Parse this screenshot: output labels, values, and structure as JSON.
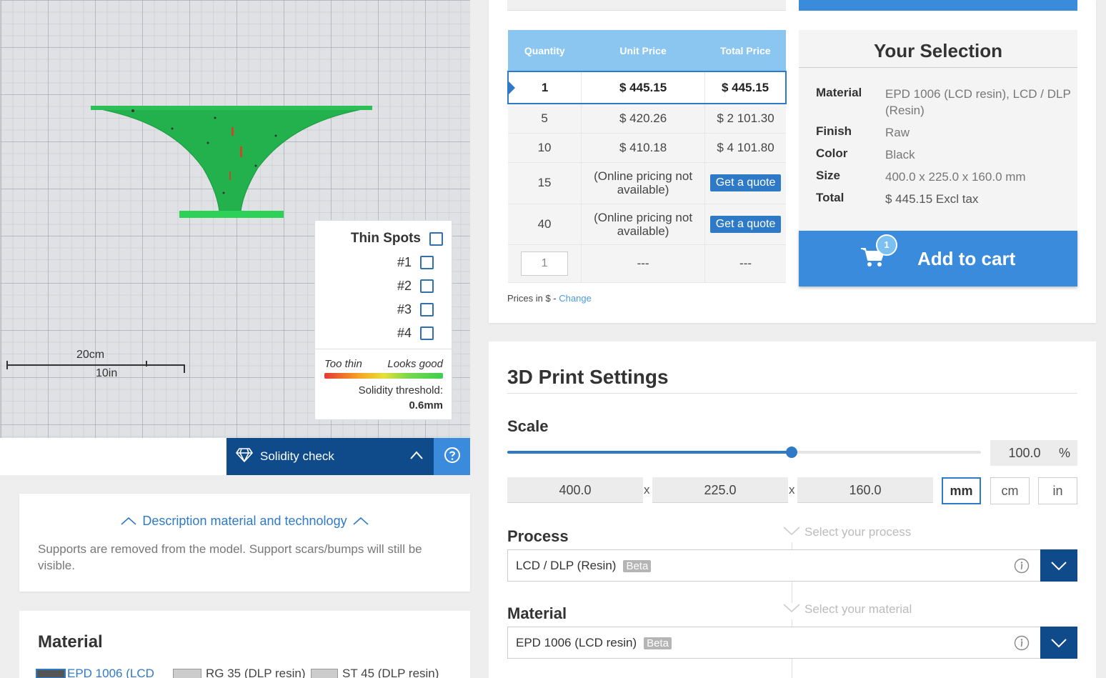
{
  "viewer": {
    "scale_cm": "20cm",
    "scale_in": "10in",
    "thin_spots": {
      "title": "Thin Spots",
      "items": [
        "#1",
        "#2",
        "#3",
        "#4"
      ],
      "legend_low": "Too thin",
      "legend_high": "Looks good",
      "threshold_label": "Solidity threshold:",
      "threshold_value": "0.6mm"
    },
    "solidity_button": "Solidity check",
    "model_color": "#22b14c"
  },
  "description": {
    "header": "Description material and technology",
    "text": "Supports are removed from the model. Support scars/bumps will still be visible."
  },
  "material_card": {
    "title": "Material",
    "options": [
      "EPD 1006 (LCD",
      "RG 35 (DLP resin)",
      "ST 45 (DLP resin)"
    ]
  },
  "pricing": {
    "headers": [
      "Quantity",
      "Unit Price",
      "Total Price"
    ],
    "rows": [
      {
        "qty": "1",
        "unit": "$ 445.15",
        "total": "$ 445.15"
      },
      {
        "qty": "5",
        "unit": "$ 420.26",
        "total": "$ 2 101.30"
      },
      {
        "qty": "10",
        "unit": "$ 410.18",
        "total": "$ 4 101.80"
      },
      {
        "qty": "15",
        "unit": "(Online pricing not available)",
        "total": "Get a quote"
      },
      {
        "qty": "40",
        "unit": "(Online pricing not available)",
        "total": "Get a quote"
      }
    ],
    "custom_qty": "1",
    "custom_unit": "---",
    "custom_total": "---",
    "prices_in": "Prices in $ -",
    "change": "Change"
  },
  "selection": {
    "title": "Your Selection",
    "rows": [
      {
        "k": "Material",
        "v": "EPD 1006 (LCD resin), LCD / DLP (Resin)"
      },
      {
        "k": "Finish",
        "v": "Raw"
      },
      {
        "k": "Color",
        "v": "Black"
      },
      {
        "k": "Size",
        "v": "400.0 x 225.0 x 160.0 mm"
      },
      {
        "k": "Total",
        "v": "$ 445.15 Excl tax"
      }
    ],
    "cart_badge": "1",
    "add_to_cart": "Add to cart"
  },
  "settings": {
    "title": "3D Print Settings",
    "scale_label": "Scale",
    "scale_value": "100.0",
    "scale_unit": "%",
    "slider_fraction": 0.6,
    "dims": [
      "400.0",
      "225.0",
      "160.0"
    ],
    "x": "x",
    "units": [
      "mm",
      "cm",
      "in"
    ],
    "active_unit": "mm",
    "process_label": "Process",
    "process_hint": "Select your process",
    "process_value": "LCD / DLP (Resin)",
    "material_label": "Material",
    "material_hint": "Select your material",
    "material_value": "EPD 1006 (LCD resin)",
    "beta": "Beta"
  },
  "colors": {
    "accent": "#3a8bdb",
    "dark_blue": "#0f4a8a",
    "header_blue": "#8ac6f0"
  }
}
